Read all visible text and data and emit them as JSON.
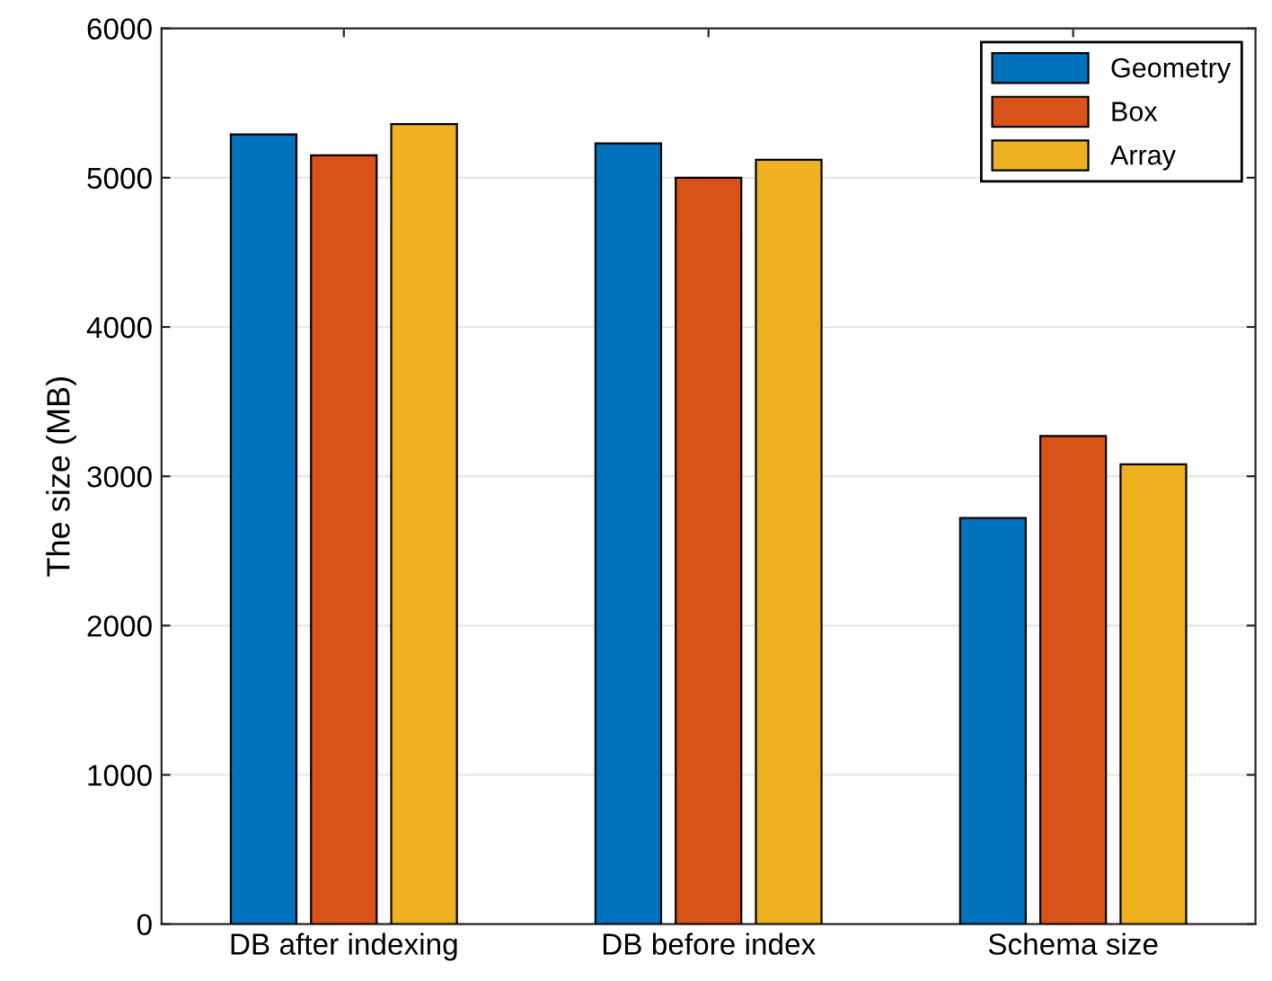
{
  "chart_data": {
    "type": "bar",
    "categories": [
      "DB after indexing",
      "DB before index",
      "Schema size"
    ],
    "ylabel": "The size (MB)",
    "series": [
      {
        "name": "Geometry",
        "color": "#0072bd",
        "values": [
          5290,
          5230,
          2720
        ]
      },
      {
        "name": "Box",
        "color": "#d95319",
        "values": [
          5150,
          5000,
          3270
        ]
      },
      {
        "name": "Array",
        "color": "#edb120",
        "values": [
          5360,
          5120,
          3080
        ]
      }
    ],
    "ylim": [
      0,
      6000
    ],
    "yticks": [
      0,
      1000,
      2000,
      3000,
      4000,
      5000,
      6000
    ],
    "grid": "y",
    "legend": "top right"
  }
}
